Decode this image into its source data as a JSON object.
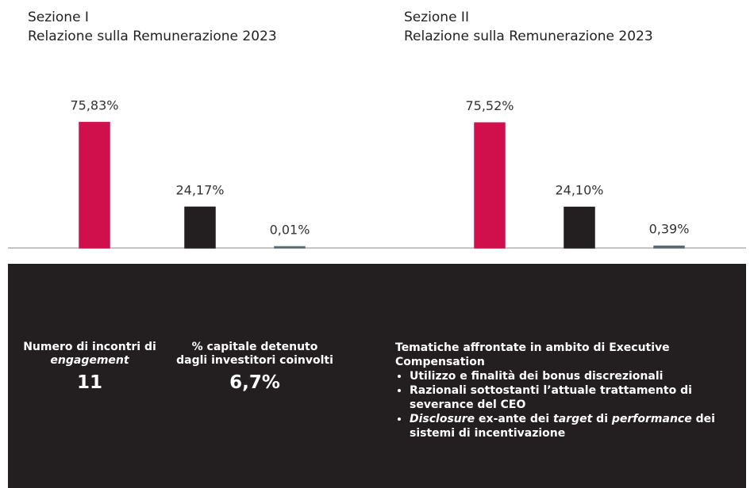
{
  "chart_data": [
    {
      "type": "bar",
      "title": "Sezione I",
      "subtitle": "Relazione sulla Remunerazione 2023",
      "categories": [
        null,
        null,
        null
      ],
      "values": [
        75.83,
        24.17,
        0.01
      ],
      "value_labels": [
        "75,83%",
        "24,17%",
        "0,01%"
      ],
      "colors": [
        "#d0104c",
        "#231f20",
        "#5b6b72"
      ]
    },
    {
      "type": "bar",
      "title": "Sezione II",
      "subtitle": "Relazione sulla Remunerazione 2023",
      "categories": [
        null,
        null,
        null
      ],
      "values": [
        75.52,
        24.1,
        0.39
      ],
      "value_labels": [
        "75,52%",
        "24,10%",
        "0,39%"
      ],
      "colors": [
        "#d0104c",
        "#231f20",
        "#5b6b72"
      ]
    }
  ],
  "panel": {
    "items": [
      {
        "label": [
          {
            "text": "Numero di incontri di "
          },
          {
            "text": "engagement",
            "italic": true
          }
        ],
        "value": "11"
      },
      {
        "label": [
          {
            "text": "% capitale detenuto dagli investitori coinvolti"
          }
        ],
        "value": "6,7%"
      }
    ],
    "topics": {
      "heading": "Tematiche affrontate in ambito di Executive Compensation",
      "bullets": [
        [
          {
            "text": "Utilizzo e finalità dei bonus discrezionali"
          }
        ],
        [
          {
            "text": "Razionali sottostanti l’attuale trattamento di severance del CEO"
          }
        ],
        [
          {
            "text": "Disclosure",
            "italic": true
          },
          {
            "text": " ex-ante dei "
          },
          {
            "text": "target",
            "italic": true
          },
          {
            "text": " di "
          },
          {
            "text": "performance",
            "italic": true
          },
          {
            "text": " dei sistemi di incentivazione"
          }
        ]
      ]
    }
  }
}
